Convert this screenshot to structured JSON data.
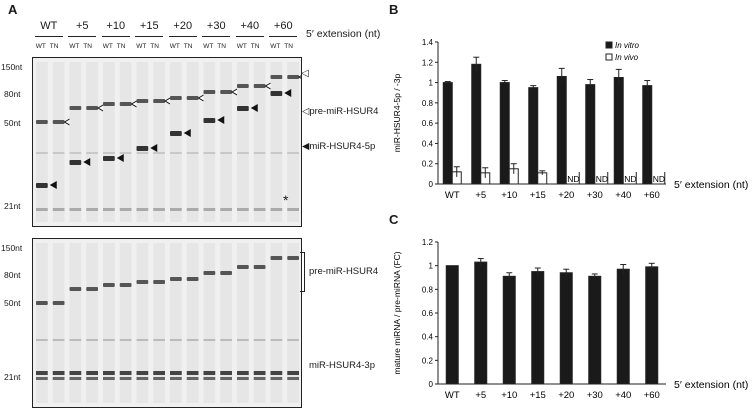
{
  "panels": {
    "a": "A",
    "b": "B",
    "c": "C"
  },
  "gel": {
    "lane_groups": [
      "WT",
      "+5",
      "+10",
      "+15",
      "+20",
      "+30",
      "+40",
      "+60"
    ],
    "lane_sub": [
      "WT",
      "TN"
    ],
    "extension_label": "5′ extension (nt)",
    "top_markers": [
      "150nt",
      "80nt",
      "50nt",
      "21nt"
    ],
    "bottom_markers": [
      "150nt",
      "80nt",
      "50nt",
      "21nt"
    ],
    "top_annotations": {
      "pre": "pre-miR-HSUR4",
      "mature": "miR-HSUR4-5p",
      "star": "*"
    },
    "bottom_annotations": {
      "pre": "pre-miR-HSUR4",
      "mature": "miR-HSUR4-3p"
    }
  },
  "chart_data": [
    {
      "type": "bar",
      "title": "",
      "ylabel": "miR-HSUR4-5p / -3p",
      "xlabel": "5′ extension (nt)",
      "categories": [
        "WT",
        "+5",
        "+10",
        "+15",
        "+20",
        "+30",
        "+40",
        "+60"
      ],
      "ylim": [
        0,
        1.4
      ],
      "yticks": [
        "0",
        "0.2",
        "0.4",
        "0.6",
        "0.8",
        "1",
        "1.2",
        "1.4"
      ],
      "legend_position": "top-right",
      "series": [
        {
          "name": "In vitro",
          "color": "#1a1a1a",
          "values": [
            1.0,
            1.18,
            1.0,
            0.95,
            1.06,
            0.98,
            1.05,
            0.97
          ],
          "errors": [
            0.01,
            0.07,
            0.02,
            0.02,
            0.08,
            0.05,
            0.08,
            0.05
          ]
        },
        {
          "name": "In vivo",
          "color": "#ffffff",
          "values": [
            0.12,
            0.11,
            0.15,
            0.11,
            0,
            0,
            0,
            0
          ],
          "errors": [
            0.05,
            0.05,
            0.05,
            0.02,
            0,
            0,
            0,
            0
          ]
        }
      ],
      "not_detected_label": "ND",
      "not_detected": [
        "+20",
        "+30",
        "+40",
        "+60"
      ]
    },
    {
      "type": "bar",
      "title": "",
      "ylabel": "mature miRNA / pre-miRNA (FC)",
      "xlabel": "5′ extension (nt)",
      "categories": [
        "WT",
        "+5",
        "+10",
        "+15",
        "+20",
        "+30",
        "+40",
        "+60"
      ],
      "ylim": [
        0,
        1.2
      ],
      "yticks": [
        "0",
        "0.2",
        "0.4",
        "0.6",
        "0.8",
        "1",
        "1.2"
      ],
      "series": [
        {
          "name": "",
          "color": "#1a1a1a",
          "values": [
            1.0,
            1.03,
            0.91,
            0.95,
            0.94,
            0.91,
            0.97,
            0.99
          ],
          "errors": [
            0.0,
            0.03,
            0.03,
            0.03,
            0.03,
            0.02,
            0.04,
            0.03
          ]
        }
      ]
    }
  ]
}
